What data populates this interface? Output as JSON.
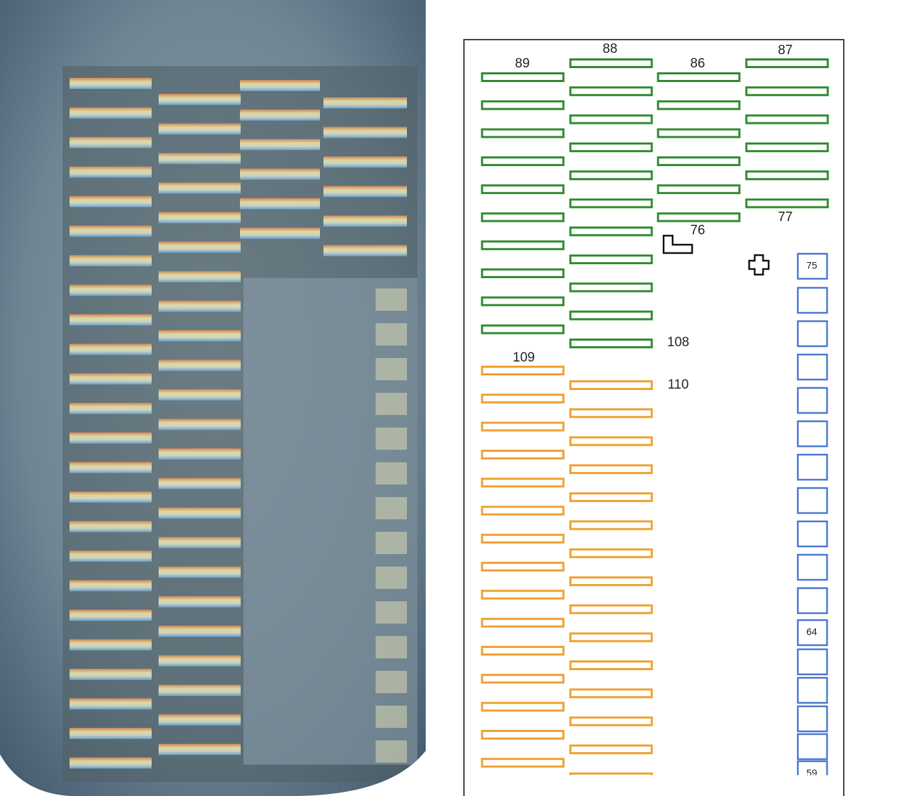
{
  "pad_labels": [
    "89",
    "88",
    "86",
    "87",
    "76",
    "77",
    "108",
    "109",
    "110",
    "75",
    "64",
    "59"
  ]
}
